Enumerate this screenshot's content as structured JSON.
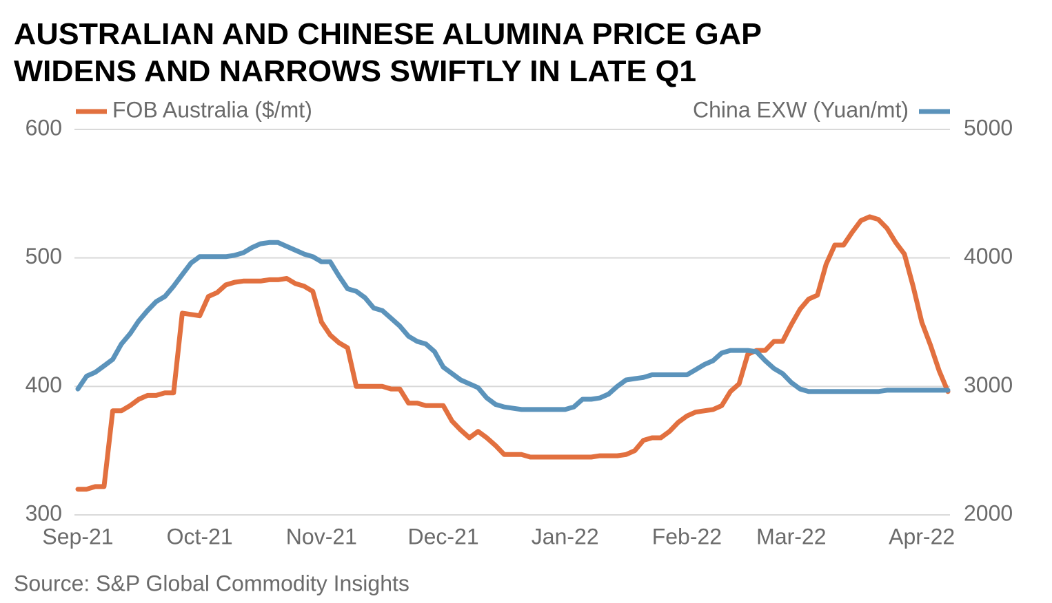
{
  "chart_data": {
    "type": "line",
    "title": [
      "AUSTRALIAN AND CHINESE ALUMINA PRICE GAP",
      "WIDENS AND NARROWS SWIFTLY IN LATE Q1"
    ],
    "source": "Source: S&P Global Commodity Insights",
    "categories": [
      "Sep-21",
      null,
      null,
      null,
      null,
      null,
      null,
      null,
      null,
      null,
      null,
      null,
      null,
      null,
      "Oct-21",
      null,
      null,
      null,
      null,
      null,
      null,
      null,
      null,
      null,
      null,
      null,
      null,
      null,
      "Nov-21",
      null,
      null,
      null,
      null,
      null,
      null,
      null,
      null,
      null,
      null,
      null,
      null,
      null,
      "Dec-21",
      null,
      null,
      null,
      null,
      null,
      null,
      null,
      null,
      null,
      null,
      null,
      null,
      null,
      "Jan-22",
      null,
      null,
      null,
      null,
      null,
      null,
      null,
      null,
      null,
      null,
      null,
      null,
      null,
      "Feb-22",
      null,
      null,
      null,
      null,
      null,
      null,
      null,
      null,
      null,
      null,
      null,
      "Mar-22",
      null,
      null,
      null,
      null,
      null,
      null,
      null,
      null,
      null,
      null,
      null,
      null,
      null,
      null,
      "Apr-22",
      null,
      null,
      null
    ],
    "series": [
      {
        "name": "FOB Australia ($/mt)",
        "color": "#e2703f",
        "axis": "y",
        "values": [
          320,
          320,
          322,
          322,
          381,
          381,
          385,
          390,
          393,
          393,
          395,
          395,
          457,
          456,
          455,
          470,
          473,
          479,
          481,
          482,
          482,
          482,
          483,
          483,
          484,
          480,
          478,
          474,
          450,
          440,
          434,
          430,
          400,
          400,
          400,
          400,
          398,
          398,
          387,
          387,
          385,
          385,
          385,
          373,
          366,
          360,
          365,
          360,
          354,
          347,
          347,
          347,
          345,
          345,
          345,
          345,
          345,
          345,
          345,
          345,
          346,
          346,
          346,
          347,
          350,
          358,
          360,
          360,
          365,
          372,
          377,
          380,
          381,
          382,
          385,
          396,
          402,
          425,
          428,
          428,
          435,
          435,
          448,
          460,
          468,
          471,
          495,
          510,
          510,
          520,
          529,
          532,
          530,
          523,
          512,
          503,
          478,
          450,
          432,
          412,
          396
        ]
      },
      {
        "name": "China EXW (Yuan/mt)",
        "color": "#5b93bb",
        "axis": "y2",
        "values": [
          2980,
          3080,
          3110,
          3160,
          3210,
          3330,
          3410,
          3510,
          3590,
          3660,
          3700,
          3780,
          3870,
          3960,
          4010,
          4010,
          4010,
          4010,
          4020,
          4040,
          4080,
          4110,
          4120,
          4120,
          4090,
          4060,
          4030,
          4010,
          3970,
          3970,
          3860,
          3760,
          3740,
          3690,
          3610,
          3590,
          3530,
          3470,
          3390,
          3350,
          3330,
          3270,
          3150,
          3100,
          3050,
          3020,
          2990,
          2910,
          2860,
          2840,
          2830,
          2820,
          2820,
          2820,
          2820,
          2820,
          2820,
          2840,
          2900,
          2900,
          2910,
          2940,
          3000,
          3050,
          3060,
          3070,
          3090,
          3090,
          3090,
          3090,
          3090,
          3130,
          3170,
          3200,
          3260,
          3280,
          3280,
          3280,
          3270,
          3200,
          3140,
          3100,
          3030,
          2980,
          2960,
          2960,
          2960,
          2960,
          2960,
          2960,
          2960,
          2960,
          2960,
          2970,
          2970,
          2970,
          2970,
          2970,
          2970,
          2970,
          2970
        ]
      }
    ],
    "ylim": [
      300,
      600
    ],
    "yticks": [
      300,
      400,
      500,
      600
    ],
    "y2lim": [
      2000,
      5000
    ],
    "y2ticks": [
      2000,
      3000,
      4000,
      5000
    ],
    "grid": true
  }
}
